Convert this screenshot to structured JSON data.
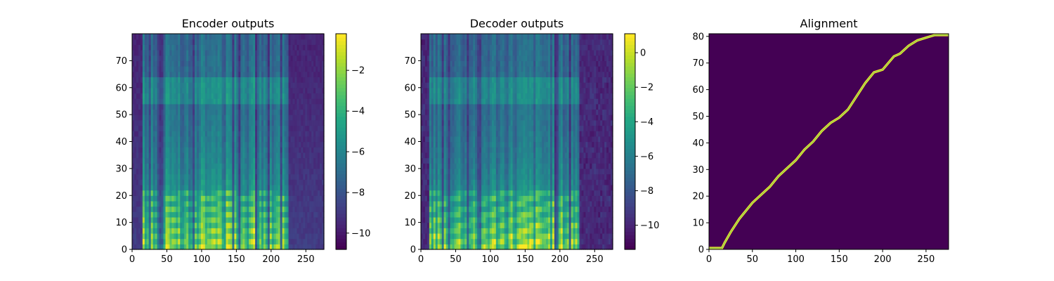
{
  "chart_data": [
    {
      "type": "heatmap",
      "title": "Encoder outputs",
      "xlim": [
        0,
        276
      ],
      "ylim": [
        0,
        80
      ],
      "xticks": [
        0,
        50,
        100,
        150,
        200,
        250
      ],
      "yticks": [
        0,
        10,
        20,
        30,
        40,
        50,
        60,
        70
      ],
      "colormap": "viridis",
      "colorbar": {
        "vmin": -10.8,
        "vmax": -0.2,
        "ticks": [
          -2,
          -4,
          -6,
          -8,
          -10
        ]
      },
      "tick_labels": {
        "x": [
          "0",
          "50",
          "100",
          "150",
          "200",
          "250"
        ],
        "y": [
          "0",
          "10",
          "20",
          "30",
          "40",
          "50",
          "60",
          "70"
        ],
        "colorbar": [
          "−2",
          "−4",
          "−6",
          "−8",
          "−10"
        ]
      },
      "description_values": {
        "active_frames": [
          15,
          225
        ],
        "silence_frames": [
          [
            0,
            15
          ],
          [
            225,
            276
          ]
        ],
        "bright_bands_rows": [
          3,
          6,
          10,
          14
        ],
        "high_freq_band_rows": [
          55,
          62
        ]
      }
    },
    {
      "type": "heatmap",
      "title": "Decoder outputs",
      "xlim": [
        0,
        276
      ],
      "ylim": [
        0,
        80
      ],
      "xticks": [
        0,
        50,
        100,
        150,
        200,
        250
      ],
      "yticks": [
        0,
        10,
        20,
        30,
        40,
        50,
        60,
        70
      ],
      "colormap": "viridis",
      "colorbar": {
        "vmin": -11.4,
        "vmax": 1.1,
        "ticks": [
          0,
          -2,
          -4,
          -6,
          -8,
          -10
        ]
      },
      "tick_labels": {
        "x": [
          "0",
          "50",
          "100",
          "150",
          "200",
          "250"
        ],
        "y": [
          "0",
          "10",
          "20",
          "30",
          "40",
          "50",
          "60",
          "70"
        ],
        "colorbar": [
          "0",
          "−2",
          "−4",
          "−6",
          "−8",
          "−10"
        ]
      },
      "description_values": {
        "active_frames": [
          12,
          228
        ],
        "silence_frames": [
          [
            0,
            12
          ],
          [
            228,
            276
          ]
        ],
        "harmonic_rows": [
          3,
          6,
          9,
          12,
          15,
          18
        ]
      }
    },
    {
      "type": "heatmap",
      "title": "Alignment",
      "xlim": [
        0,
        276
      ],
      "ylim": [
        0,
        81
      ],
      "xticks": [
        0,
        50,
        100,
        150,
        200,
        250
      ],
      "yticks": [
        0,
        10,
        20,
        30,
        40,
        50,
        60,
        70,
        80
      ],
      "colormap": "viridis",
      "tick_labels": {
        "x": [
          "0",
          "50",
          "100",
          "150",
          "200",
          "250"
        ],
        "y": [
          "0",
          "10",
          "20",
          "30",
          "40",
          "50",
          "60",
          "70",
          "80"
        ]
      },
      "alignment_path": [
        [
          0,
          0
        ],
        [
          15,
          0
        ],
        [
          18,
          2
        ],
        [
          25,
          6
        ],
        [
          35,
          11
        ],
        [
          45,
          15
        ],
        [
          50,
          17
        ],
        [
          60,
          20
        ],
        [
          70,
          23
        ],
        [
          80,
          27
        ],
        [
          90,
          30
        ],
        [
          100,
          33
        ],
        [
          110,
          37
        ],
        [
          120,
          40
        ],
        [
          130,
          44
        ],
        [
          140,
          47
        ],
        [
          150,
          49
        ],
        [
          160,
          52
        ],
        [
          170,
          57
        ],
        [
          180,
          62
        ],
        [
          190,
          66
        ],
        [
          200,
          67
        ],
        [
          213,
          72
        ],
        [
          220,
          73
        ],
        [
          230,
          76
        ],
        [
          240,
          78
        ],
        [
          250,
          79
        ],
        [
          260,
          80
        ],
        [
          276,
          80
        ]
      ]
    }
  ]
}
